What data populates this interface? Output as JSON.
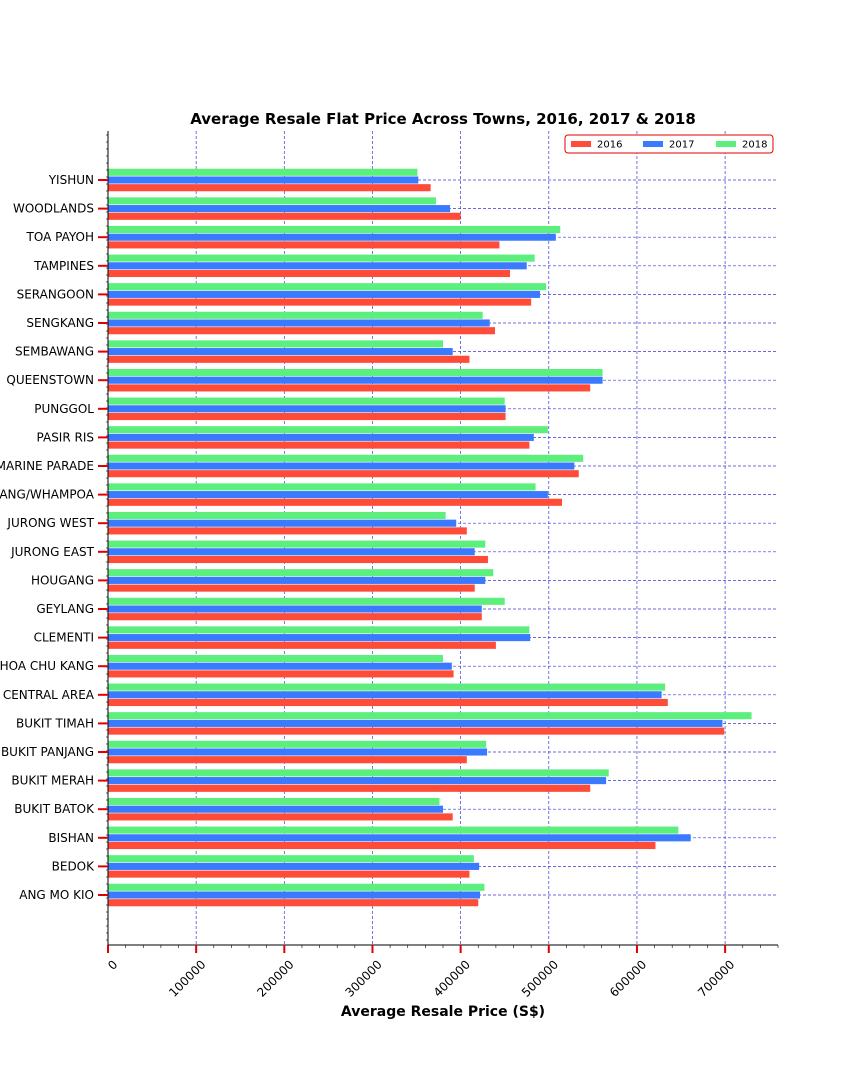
{
  "chart_data": {
    "type": "bar",
    "orientation": "horizontal",
    "title": "Average Resale Flat Price Across Towns, 2016, 2017 & 2018",
    "xlabel": "Average Resale Price (S$)",
    "ylabel": "",
    "xlim": [
      0,
      760000
    ],
    "xticks": [
      0,
      100000,
      200000,
      300000,
      400000,
      500000,
      600000,
      700000
    ],
    "xtick_labels": [
      "0",
      "100000",
      "200000",
      "300000",
      "400000",
      "500000",
      "600000",
      "700000"
    ],
    "grid": true,
    "legend_position": "top-right",
    "categories": [
      "YISHUN",
      "WOODLANDS",
      "TOA PAYOH",
      "TAMPINES",
      "SERANGOON",
      "SENGKANG",
      "SEMBAWANG",
      "QUEENSTOWN",
      "PUNGGOL",
      "PASIR RIS",
      "MARINE PARADE",
      "KALLANG/WHAMPOA",
      "JURONG WEST",
      "JURONG EAST",
      "HOUGANG",
      "GEYLANG",
      "CLEMENTI",
      "CHOA CHU KANG",
      "CENTRAL AREA",
      "BUKIT TIMAH",
      "BUKIT PANJANG",
      "BUKIT MERAH",
      "BUKIT BATOK",
      "BISHAN",
      "BEDOK",
      "ANG MO KIO"
    ],
    "series": [
      {
        "name": "2016",
        "color": "#ff4c38",
        "values": [
          366000,
          400000,
          444000,
          456000,
          480000,
          439000,
          410000,
          547000,
          451000,
          478000,
          534000,
          515000,
          407000,
          431000,
          416000,
          424000,
          440000,
          392000,
          635000,
          699000,
          407000,
          547000,
          391000,
          621000,
          410000,
          420000
        ]
      },
      {
        "name": "2017",
        "color": "#3a7aff",
        "values": [
          352000,
          388000,
          508000,
          475000,
          490000,
          433000,
          391000,
          561000,
          451000,
          483000,
          529000,
          499000,
          395000,
          416000,
          428000,
          424000,
          479000,
          390000,
          628000,
          697000,
          430000,
          565000,
          380000,
          661000,
          421000,
          422000
        ]
      },
      {
        "name": "2018",
        "color": "#5cef7e",
        "values": [
          351000,
          372000,
          513000,
          484000,
          497000,
          425000,
          380000,
          561000,
          450000,
          499000,
          539000,
          485000,
          383000,
          428000,
          437000,
          450000,
          478000,
          380000,
          632000,
          730000,
          429000,
          568000,
          376000,
          647000,
          415000,
          427000
        ]
      }
    ]
  }
}
